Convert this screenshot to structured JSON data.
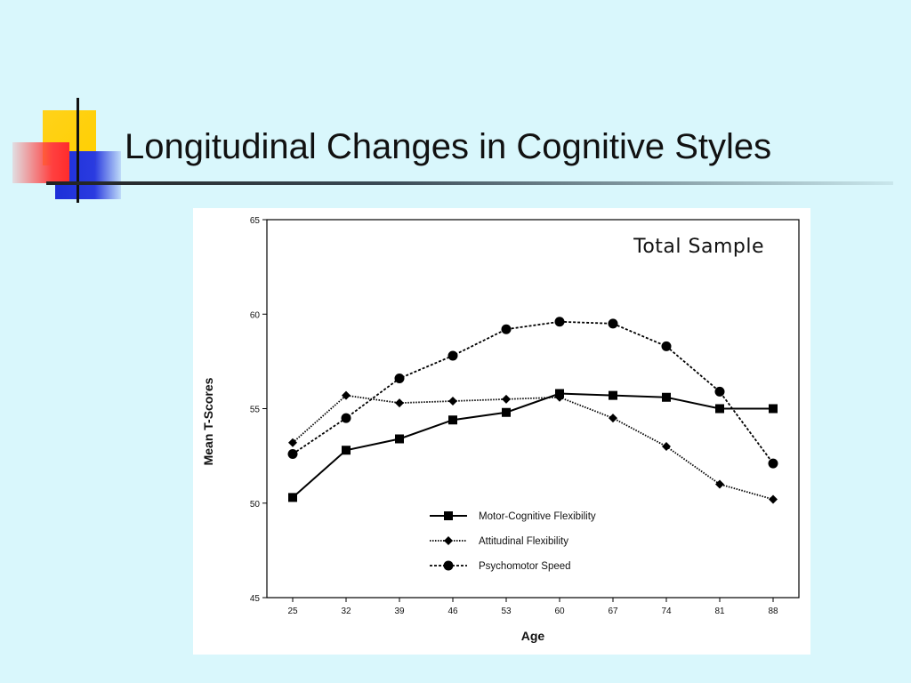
{
  "slide": {
    "title": "Longitudinal Changes in Cognitive Styles"
  },
  "colors": {
    "background": "#d9f7fc",
    "accent_yellow": "#ffd21a",
    "accent_blue": "#1d2fd8",
    "accent_red": "#ff4040"
  },
  "chart_data": {
    "type": "line",
    "title": "Total Sample",
    "xlabel": "Age",
    "ylabel": "Mean T-Scores",
    "categories": [
      "25",
      "32",
      "39",
      "46",
      "53",
      "60",
      "67",
      "74",
      "81",
      "88"
    ],
    "ylim": [
      45,
      65
    ],
    "yticks": [
      "45",
      "50",
      "55",
      "60",
      "65"
    ],
    "grid": false,
    "legend_position": "bottom-center",
    "series": [
      {
        "name": "Motor-Cognitive Flexibility",
        "marker": "square",
        "line": "solid",
        "values": [
          50.3,
          52.8,
          53.4,
          54.4,
          54.8,
          55.8,
          55.7,
          55.6,
          55.0,
          55.0
        ]
      },
      {
        "name": "Attitudinal Flexibility",
        "marker": "diamond",
        "line": "dotted",
        "values": [
          53.2,
          55.7,
          55.3,
          55.4,
          55.5,
          55.6,
          54.5,
          53.0,
          51.0,
          50.2
        ]
      },
      {
        "name": "Psychomotor Speed",
        "marker": "circle",
        "line": "dashed",
        "values": [
          52.6,
          54.5,
          56.6,
          57.8,
          59.2,
          59.6,
          59.5,
          58.3,
          55.9,
          52.1
        ]
      }
    ]
  }
}
